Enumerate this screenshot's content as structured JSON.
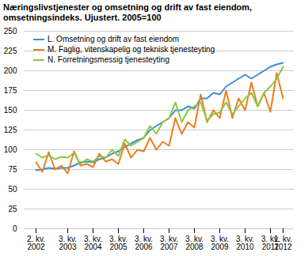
{
  "chart_data": {
    "type": "line",
    "title": "Næringslivstjenester og omsetning og drift av fast eiendom, omsetningsindeks. Ujustert. 2005=100",
    "categories": [
      "2. kv.\n2002",
      null,
      null,
      null,
      null,
      "3. kv.\n2003",
      null,
      null,
      null,
      "3. kv.\n2004",
      null,
      null,
      null,
      "3. kv.\n2005",
      null,
      null,
      null,
      "3. kv.\n2006",
      null,
      null,
      null,
      "3. kv.\n2007",
      null,
      null,
      null,
      "3. kv.\n2008",
      null,
      null,
      null,
      "3. kv.\n2009",
      null,
      null,
      null,
      "3. kv.\n2010",
      null,
      null,
      null,
      "3. kv.\n2011",
      null,
      "1. kv.\n2012"
    ],
    "series": [
      {
        "name": "L. Omsetning og drift av fast eiendom",
        "color": "#3a8fd3",
        "values": [
          74,
          75,
          77,
          76,
          77,
          77,
          80,
          84,
          85,
          84,
          88,
          90,
          95,
          98,
          103,
          108,
          112,
          115,
          125,
          130,
          135,
          140,
          150,
          150,
          155,
          152,
          165,
          165,
          172,
          170,
          180,
          185,
          190,
          195,
          190,
          195,
          200,
          205,
          208,
          210
        ]
      },
      {
        "name": "M. Faglig, vitenskapelig og teknisk tjenesteyting",
        "color": "#f07d1a",
        "values": [
          84,
          72,
          97,
          75,
          80,
          70,
          98,
          80,
          82,
          78,
          95,
          85,
          88,
          82,
          108,
          90,
          100,
          98,
          115,
          100,
          110,
          105,
          140,
          120,
          135,
          128,
          170,
          135,
          150,
          140,
          175,
          140,
          165,
          150,
          185,
          155,
          172,
          148,
          197,
          165
        ]
      },
      {
        "name": "N. Forretningsmessig tjenesteyting",
        "color": "#8dc63f",
        "values": [
          95,
          90,
          93,
          88,
          91,
          90,
          96,
          82,
          88,
          85,
          92,
          90,
          100,
          92,
          113,
          105,
          110,
          115,
          130,
          120,
          135,
          140,
          160,
          135,
          150,
          155,
          160,
          137,
          145,
          147,
          160,
          145,
          155,
          165,
          172,
          155,
          172,
          180,
          190,
          205
        ]
      }
    ],
    "ylim": [
      0,
      250
    ],
    "yticks": [
      0,
      25,
      50,
      75,
      100,
      125,
      150,
      175,
      200,
      225,
      250
    ],
    "grid": true,
    "legend": "top-left"
  }
}
